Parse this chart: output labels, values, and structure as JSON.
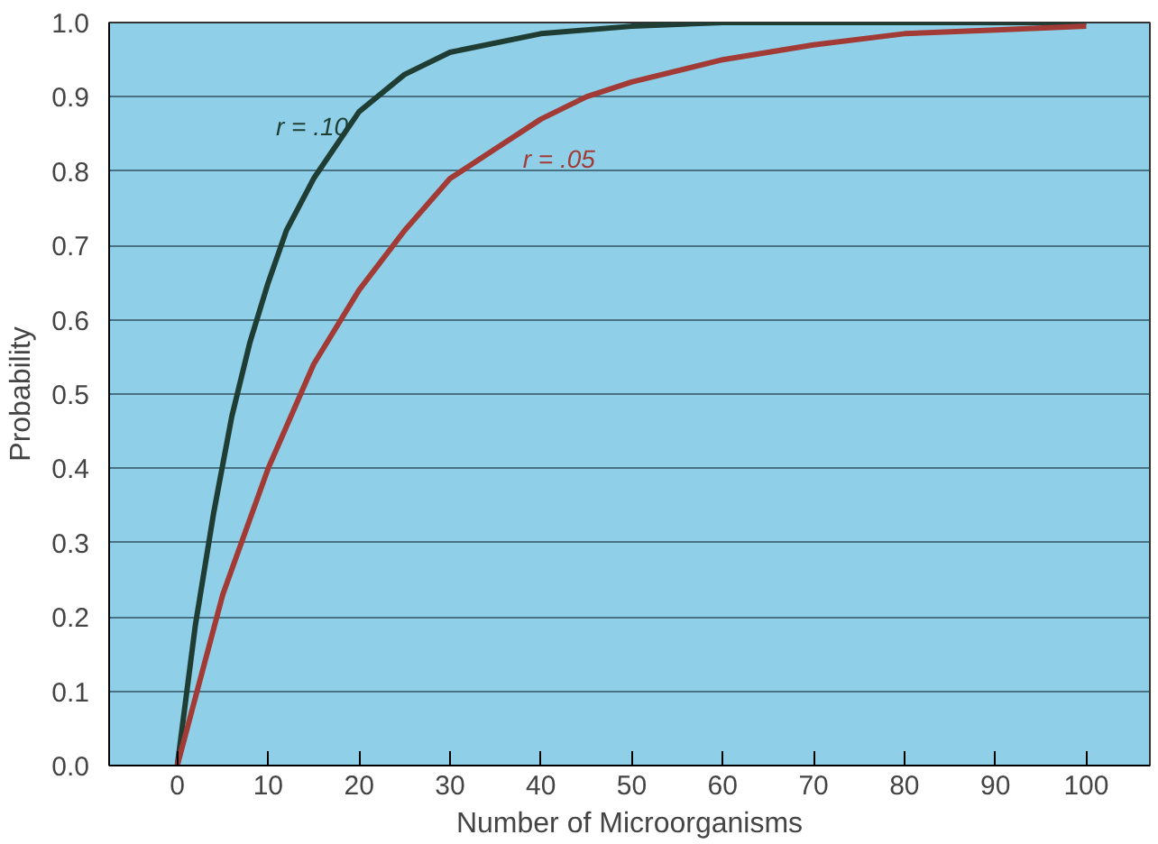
{
  "chart_data": {
    "type": "line",
    "xlabel": "Number of Microorganisms",
    "ylabel": "Probability",
    "xlim": [
      -7.5,
      107
    ],
    "ylim": [
      0,
      1
    ],
    "xticks": [
      0,
      10,
      20,
      30,
      40,
      50,
      60,
      70,
      80,
      90,
      100
    ],
    "yticks": [
      {
        "value": 0,
        "label": "0.0"
      },
      0.1,
      0.2,
      0.3,
      0.4,
      0.5,
      0.6,
      0.7,
      0.8,
      0.9,
      {
        "value": 1,
        "label": "1.0"
      }
    ],
    "grid": "y",
    "marker": "none",
    "line_style": "solid",
    "series": [
      {
        "name": "r = .10",
        "color": "#1f3d33",
        "x": [
          0,
          2,
          4,
          6,
          8,
          10,
          12,
          15,
          20,
          25,
          30,
          40,
          50,
          60,
          80,
          100
        ],
        "values": [
          0,
          0.19,
          0.34,
          0.47,
          0.57,
          0.65,
          0.72,
          0.79,
          0.88,
          0.93,
          0.96,
          0.985,
          0.995,
          1.0,
          1.0,
          1.0
        ]
      },
      {
        "name": "r = .05",
        "color": "#a23a35",
        "x": [
          0,
          5,
          10,
          15,
          20,
          25,
          30,
          35,
          40,
          45,
          50,
          60,
          70,
          80,
          90,
          100
        ],
        "values": [
          0,
          0.23,
          0.4,
          0.54,
          0.64,
          0.72,
          0.79,
          0.83,
          0.87,
          0.9,
          0.92,
          0.95,
          0.97,
          0.985,
          0.99,
          0.995
        ]
      }
    ]
  }
}
